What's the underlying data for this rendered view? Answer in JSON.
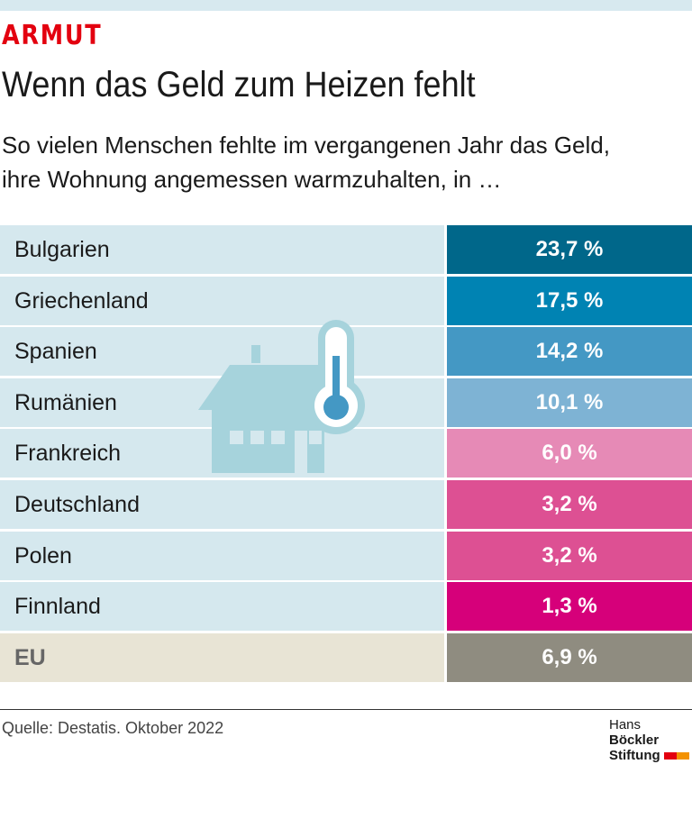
{
  "header": {
    "kicker": "ARMUT",
    "title": "Wenn das Geld zum Heizen fehlt",
    "subtitle_line1": "So vielen Menschen fehlte im vergangenen Jahr das Geld,",
    "subtitle_line2": "ihre Wohnung angemessen warmzuhalten, in …"
  },
  "chart_data": {
    "type": "table",
    "unit": "%",
    "rows": [
      {
        "label": "Bulgarien",
        "value": 23.7,
        "text": "23,7 %",
        "color": "#00678a"
      },
      {
        "label": "Griechenland",
        "value": 17.5,
        "text": "17,5 %",
        "color": "#0083b3"
      },
      {
        "label": "Spanien",
        "value": 14.2,
        "text": "14,2 %",
        "color": "#4498c4"
      },
      {
        "label": "Rumänien",
        "value": 10.1,
        "text": "10,1 %",
        "color": "#7eb3d4"
      },
      {
        "label": "Frankreich",
        "value": 6.0,
        "text": "6,0 %",
        "color": "#e68ab6"
      },
      {
        "label": "Deutschland",
        "value": 3.2,
        "text": "3,2 %",
        "color": "#dd5093"
      },
      {
        "label": "Polen",
        "value": 3.2,
        "text": "3,2 %",
        "color": "#dd5093"
      },
      {
        "label": "Finnland",
        "value": 1.3,
        "text": "1,3 %",
        "color": "#d6007a"
      },
      {
        "label": "EU",
        "value": 6.9,
        "text": "6,9 %",
        "color": "#8f8c80"
      }
    ]
  },
  "footer": {
    "source": "Quelle: Destatis. Oktober 2022",
    "logo_line1": "Hans",
    "logo_line1_bold": "Böckler",
    "logo_line2": "Stiftung"
  }
}
